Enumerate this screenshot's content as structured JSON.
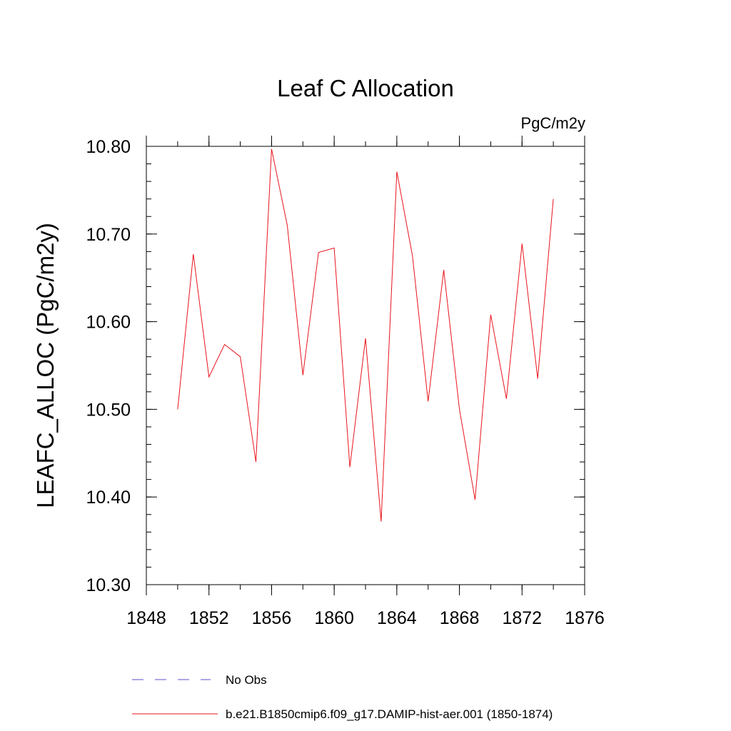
{
  "chart_data": {
    "type": "line",
    "title": "Leaf C Allocation",
    "units_label": "PgC/m2y",
    "xlabel": "",
    "ylabel": "LEAFC_ALLOC  (PgC/m2y)",
    "xlim": [
      1848,
      1876
    ],
    "ylim": [
      10.3,
      10.8
    ],
    "x_ticks": [
      1848,
      1852,
      1856,
      1860,
      1864,
      1868,
      1872,
      1876
    ],
    "x_tick_labels": [
      "1848",
      "1852",
      "1856",
      "1860",
      "1864",
      "1868",
      "1872",
      "1876"
    ],
    "y_ticks": [
      10.3,
      10.4,
      10.5,
      10.6,
      10.7,
      10.8
    ],
    "y_tick_labels": [
      "10.30",
      "10.40",
      "10.50",
      "10.60",
      "10.70",
      "10.80"
    ],
    "grid": false,
    "legend_position": "bottom",
    "legend": [
      {
        "label": "No Obs",
        "color": "#5a4fcf",
        "style": "dashed"
      },
      {
        "label": "b.e21.B1850cmip6.f09_g17.DAMIP-hist-aer.001 (1850-1874)",
        "color": "#e8141c",
        "style": "solid"
      }
    ],
    "series": [
      {
        "name": "b.e21.B1850cmip6.f09_g17.DAMIP-hist-aer.001 (1850-1874)",
        "color": "#e8141c",
        "x": [
          1850,
          1851,
          1852,
          1853,
          1854,
          1855,
          1856,
          1857,
          1858,
          1859,
          1860,
          1861,
          1862,
          1863,
          1864,
          1865,
          1866,
          1867,
          1868,
          1869,
          1870,
          1871,
          1872,
          1873,
          1874
        ],
        "y": [
          10.5,
          10.677,
          10.537,
          10.574,
          10.56,
          10.44,
          10.797,
          10.71,
          10.539,
          10.679,
          10.684,
          10.434,
          10.581,
          10.372,
          10.771,
          10.675,
          10.509,
          10.659,
          10.5,
          10.397,
          10.608,
          10.512,
          10.689,
          10.535,
          10.74
        ]
      }
    ]
  }
}
